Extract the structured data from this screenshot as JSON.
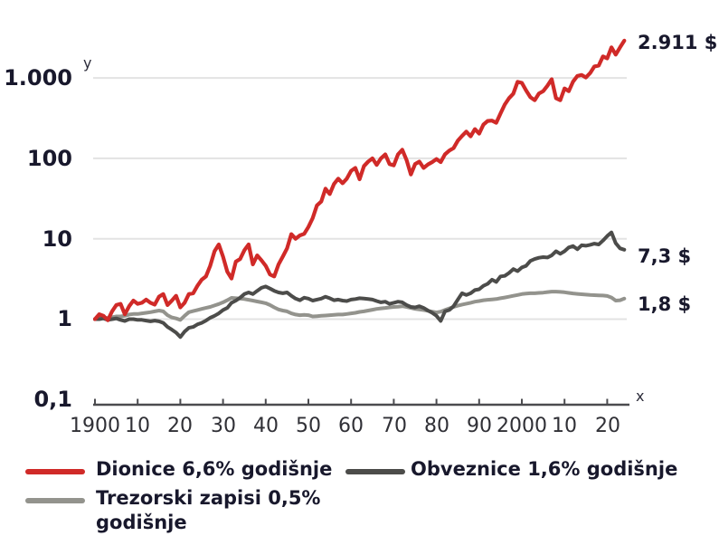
{
  "chart_data": {
    "type": "line",
    "title": "",
    "y_scale": "log",
    "x_axis_letter": "x",
    "y_axis_letter": "y",
    "x_range": [
      1900,
      2024
    ],
    "y_range": [
      0.1,
      1000
    ],
    "grid": "horizontal-only",
    "legend_position": "bottom",
    "y_gridline_values": [
      1000,
      100,
      10,
      1
    ],
    "y_tick_values": [
      1000,
      100,
      10,
      1,
      0.1
    ],
    "y_tick_labels": [
      "1.000",
      "100",
      "10",
      "1",
      "0,1"
    ],
    "x_tick_values": [
      1900,
      1910,
      1920,
      1930,
      1940,
      1950,
      1960,
      1970,
      1980,
      1990,
      2000,
      2010,
      2020
    ],
    "x_tick_labels": [
      "1900",
      "10",
      "20",
      "30",
      "40",
      "50",
      "60",
      "70",
      "80",
      "90",
      "2000",
      "10",
      "20"
    ],
    "series": [
      {
        "name": "Dionice 6,6% godišnje",
        "color": "#d02a28",
        "end_label": "2.911 $",
        "end_value": 2911,
        "start_year": 1900,
        "values": [
          1.0,
          1.15,
          1.1,
          0.97,
          1.25,
          1.5,
          1.55,
          1.15,
          1.45,
          1.7,
          1.55,
          1.6,
          1.75,
          1.6,
          1.52,
          1.9,
          2.05,
          1.5,
          1.7,
          1.95,
          1.4,
          1.6,
          2.05,
          2.1,
          2.6,
          3.1,
          3.4,
          4.6,
          7.0,
          8.5,
          6.0,
          3.9,
          3.2,
          5.2,
          5.6,
          7.2,
          8.5,
          4.8,
          6.2,
          5.4,
          4.6,
          3.6,
          3.4,
          4.8,
          6.0,
          7.6,
          11.4,
          10.0,
          11.0,
          11.5,
          14,
          18,
          26,
          29,
          42,
          36,
          48,
          56,
          49,
          56,
          70,
          76,
          55,
          80,
          91,
          100,
          83,
          100,
          112,
          85,
          82,
          112,
          128,
          95,
          63,
          85,
          91,
          76,
          84,
          90,
          98,
          90,
          112,
          125,
          134,
          166,
          190,
          215,
          188,
          231,
          203,
          263,
          292,
          295,
          277,
          361,
          467,
          560,
          638,
          895,
          870,
          700,
          577,
          529,
          640,
          685,
          800,
          965,
          560,
          529,
          740,
          685,
          900,
          1060,
          1090,
          1012,
          1150,
          1390,
          1425,
          1855,
          1750,
          2400,
          1950,
          2400,
          2911
        ]
      },
      {
        "name": "Obveznice 1,6% godišnje",
        "color": "#4c4c4a",
        "end_label": "7,3 $",
        "end_value": 7.3,
        "start_year": 1900,
        "values": [
          1.0,
          1.0,
          1.02,
          0.98,
          1.0,
          1.02,
          0.98,
          0.95,
          1.0,
          1.0,
          0.98,
          0.98,
          0.96,
          0.94,
          0.96,
          0.94,
          0.9,
          0.8,
          0.74,
          0.68,
          0.6,
          0.7,
          0.78,
          0.8,
          0.86,
          0.9,
          0.96,
          1.04,
          1.1,
          1.18,
          1.3,
          1.38,
          1.6,
          1.7,
          1.85,
          2.05,
          2.15,
          2.05,
          2.25,
          2.45,
          2.55,
          2.4,
          2.25,
          2.15,
          2.1,
          2.15,
          1.95,
          1.8,
          1.72,
          1.85,
          1.8,
          1.7,
          1.75,
          1.8,
          1.9,
          1.82,
          1.72,
          1.75,
          1.7,
          1.68,
          1.75,
          1.78,
          1.82,
          1.8,
          1.78,
          1.75,
          1.68,
          1.62,
          1.65,
          1.55,
          1.6,
          1.65,
          1.62,
          1.5,
          1.42,
          1.4,
          1.45,
          1.38,
          1.28,
          1.2,
          1.1,
          0.95,
          1.25,
          1.3,
          1.45,
          1.75,
          2.1,
          2.0,
          2.1,
          2.3,
          2.35,
          2.6,
          2.75,
          3.1,
          2.9,
          3.4,
          3.45,
          3.75,
          4.2,
          3.95,
          4.4,
          4.6,
          5.3,
          5.6,
          5.8,
          5.9,
          5.85,
          6.2,
          7.0,
          6.5,
          7.0,
          7.8,
          8.1,
          7.4,
          8.3,
          8.2,
          8.4,
          8.7,
          8.5,
          9.5,
          10.8,
          12.0,
          8.8,
          7.6,
          7.3
        ]
      },
      {
        "name": "Trezorski zapisi 0,5% godišnje",
        "color": "#93938d",
        "end_label": "1,8 $",
        "end_value": 1.8,
        "start_year": 1900,
        "values": [
          1.0,
          1.02,
          1.03,
          1.04,
          1.06,
          1.08,
          1.08,
          1.1,
          1.14,
          1.16,
          1.16,
          1.18,
          1.2,
          1.22,
          1.25,
          1.28,
          1.25,
          1.12,
          1.05,
          1.02,
          0.98,
          1.1,
          1.22,
          1.26,
          1.3,
          1.34,
          1.38,
          1.42,
          1.48,
          1.54,
          1.62,
          1.72,
          1.84,
          1.82,
          1.8,
          1.78,
          1.74,
          1.7,
          1.66,
          1.62,
          1.58,
          1.5,
          1.4,
          1.32,
          1.28,
          1.25,
          1.18,
          1.14,
          1.12,
          1.13,
          1.12,
          1.08,
          1.09,
          1.1,
          1.11,
          1.12,
          1.13,
          1.14,
          1.14,
          1.16,
          1.18,
          1.2,
          1.23,
          1.25,
          1.28,
          1.31,
          1.34,
          1.36,
          1.38,
          1.4,
          1.42,
          1.43,
          1.45,
          1.42,
          1.38,
          1.34,
          1.32,
          1.3,
          1.27,
          1.24,
          1.21,
          1.24,
          1.3,
          1.36,
          1.42,
          1.47,
          1.52,
          1.56,
          1.6,
          1.65,
          1.68,
          1.72,
          1.74,
          1.76,
          1.78,
          1.82,
          1.86,
          1.9,
          1.95,
          2.0,
          2.05,
          2.08,
          2.1,
          2.1,
          2.12,
          2.14,
          2.17,
          2.2,
          2.2,
          2.18,
          2.16,
          2.12,
          2.09,
          2.06,
          2.04,
          2.02,
          2.0,
          1.99,
          1.98,
          1.97,
          1.94,
          1.86,
          1.7,
          1.72,
          1.8
        ]
      }
    ]
  },
  "colors": {
    "stocks": "#d02a28",
    "bonds": "#4c4c4a",
    "bills": "#93938d",
    "gridline": "#e3e3e3",
    "axis": "#4b4b4f",
    "text_dark": "#18182c"
  }
}
